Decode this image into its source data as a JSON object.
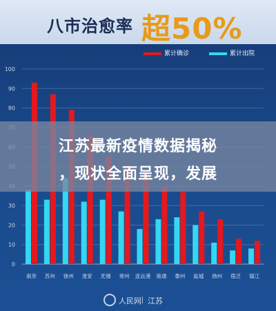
{
  "title": {
    "text": "八市治愈率",
    "highlight": "超50%"
  },
  "legend": [
    {
      "label": "累计确诊",
      "color": "#e5181e"
    },
    {
      "label": "累计出院",
      "color": "#35d6f2"
    }
  ],
  "overlay": {
    "line1": "江苏最新疫情数据揭秘",
    "line2": "，现状全面呈现，发展"
  },
  "footer": {
    "logo_text": "人民网",
    "region": "江苏"
  },
  "chart_data": {
    "type": "bar",
    "categories": [
      "南京",
      "苏州",
      "徐州",
      "淮安",
      "无锡",
      "常州",
      "连云港",
      "南通",
      "泰州",
      "盐城",
      "扬州",
      "宿迁",
      "镇江"
    ],
    "series": [
      {
        "name": "累计确诊",
        "color": "#e5181e",
        "values": [
          93,
          87,
          79,
          66,
          55,
          51,
          48,
          40,
          37,
          27,
          23,
          13,
          12
        ]
      },
      {
        "name": "累计出院",
        "color": "#35d6f2",
        "values": [
          38,
          33,
          44,
          32,
          33,
          27,
          18,
          23,
          24,
          20,
          11,
          7,
          8
        ]
      }
    ],
    "ylim": [
      0,
      100
    ],
    "yticks": [
      0,
      10,
      20,
      30,
      40,
      50,
      60,
      70,
      80,
      90,
      100
    ],
    "grid": true
  }
}
